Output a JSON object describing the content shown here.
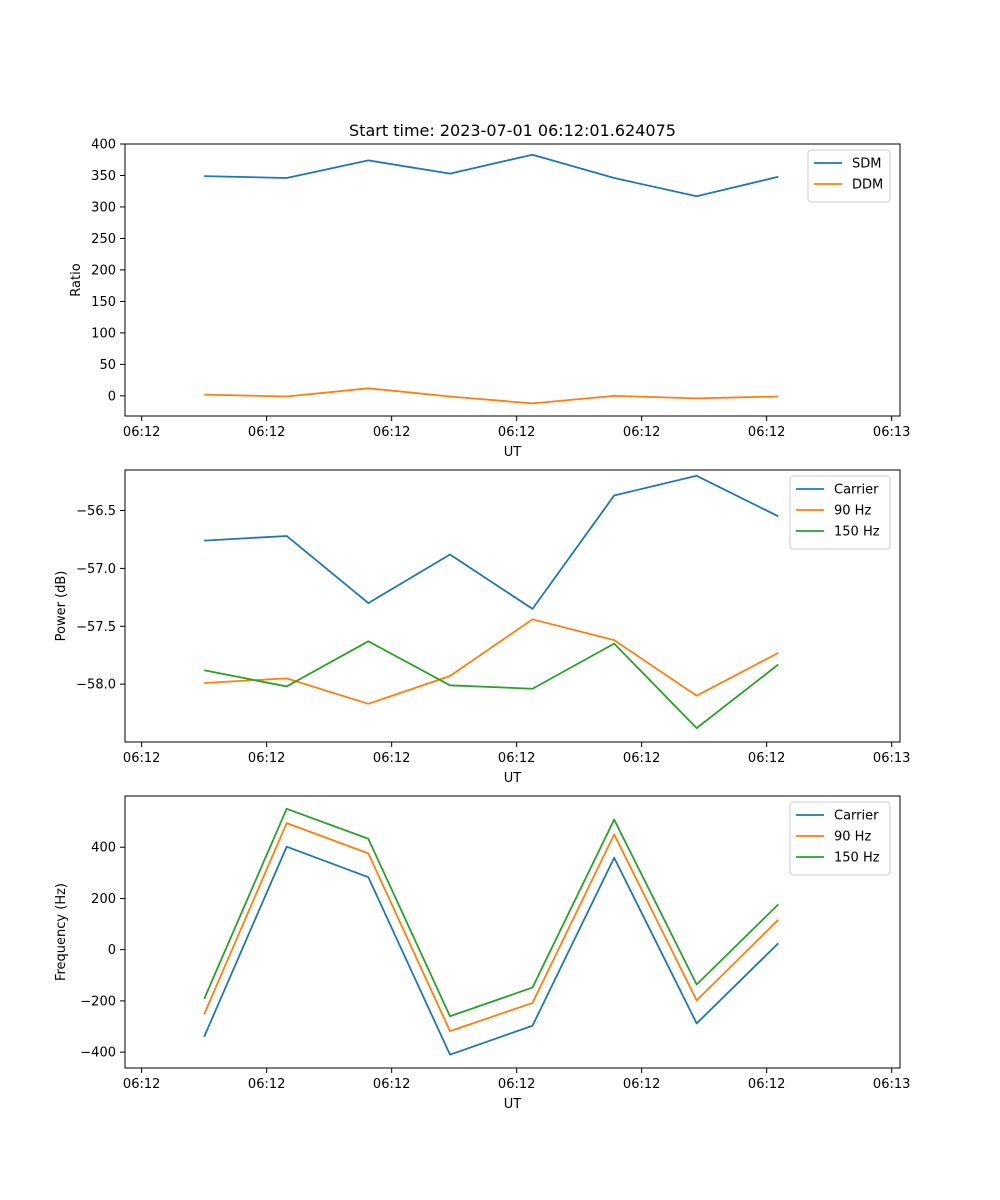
{
  "title": "Start time: 2023-07-01 06:12:01.624075",
  "colors": {
    "blue": "#1f77b4",
    "orange": "#ff7f0e",
    "green": "#2ca02c"
  },
  "chart_data": [
    {
      "type": "line",
      "title": "Start time: 2023-07-01 06:12:01.624075",
      "xlabel": "UT",
      "ylabel": "Ratio",
      "xlim": [
        -0.2,
        9.1
      ],
      "ylim": [
        -32,
        400
      ],
      "x_ticks": [
        0,
        1.5,
        3,
        4.5,
        6,
        7.5,
        9
      ],
      "x_tick_labels": [
        "06:12",
        "06:12",
        "06:12",
        "06:12",
        "06:12",
        "06:12",
        "06:13"
      ],
      "y_ticks": [
        400,
        350,
        300,
        250,
        200,
        150,
        100,
        50,
        0
      ],
      "y_tick_labels": [
        "400",
        "350",
        "300",
        "250",
        "200",
        "150",
        "100",
        "50",
        "0"
      ],
      "legend_position": "top-right",
      "x": [
        0.75,
        1.74,
        2.72,
        3.7,
        4.69,
        5.67,
        6.66,
        7.64
      ],
      "series": [
        {
          "name": "SDM",
          "color": "#1f77b4",
          "values": [
            349,
            346,
            374,
            353,
            383,
            346,
            317,
            348
          ]
        },
        {
          "name": "DDM",
          "color": "#ff7f0e",
          "values": [
            2,
            -1,
            12,
            -1,
            -12,
            0,
            -4,
            -1
          ]
        }
      ]
    },
    {
      "type": "line",
      "xlabel": "UT",
      "ylabel": "Power (dB)",
      "xlim": [
        -0.2,
        9.1
      ],
      "ylim": [
        -58.5,
        -56.15
      ],
      "x_ticks": [
        0,
        1.5,
        3,
        4.5,
        6,
        7.5,
        9
      ],
      "x_tick_labels": [
        "06:12",
        "06:12",
        "06:12",
        "06:12",
        "06:12",
        "06:12",
        "06:13"
      ],
      "y_ticks": [
        -56.5,
        -57.0,
        -57.5,
        -58.0
      ],
      "y_tick_labels": [
        "−56.5",
        "−57.0",
        "−57.5",
        "−58.0"
      ],
      "legend_position": "top-right",
      "x": [
        0.75,
        1.74,
        2.72,
        3.7,
        4.69,
        5.67,
        6.66,
        7.64
      ],
      "series": [
        {
          "name": "Carrier",
          "color": "#1f77b4",
          "values": [
            -56.76,
            -56.72,
            -57.3,
            -56.88,
            -57.35,
            -56.37,
            -56.2,
            -56.55
          ]
        },
        {
          "name": "90 Hz",
          "color": "#ff7f0e",
          "values": [
            -57.99,
            -57.95,
            -58.17,
            -57.93,
            -57.44,
            -57.62,
            -58.1,
            -57.73
          ]
        },
        {
          "name": "150 Hz",
          "color": "#2ca02c",
          "values": [
            -57.88,
            -58.02,
            -57.63,
            -58.01,
            -58.04,
            -57.65,
            -58.38,
            -57.83
          ]
        }
      ]
    },
    {
      "type": "line",
      "xlabel": "UT",
      "ylabel": "Frequency (Hz)",
      "xlim": [
        -0.2,
        9.1
      ],
      "ylim": [
        -462,
        600
      ],
      "x_ticks": [
        0,
        1.5,
        3,
        4.5,
        6,
        7.5,
        9
      ],
      "x_tick_labels": [
        "06:12",
        "06:12",
        "06:12",
        "06:12",
        "06:12",
        "06:12",
        "06:13"
      ],
      "y_ticks": [
        400,
        200,
        0,
        -200,
        -400
      ],
      "y_tick_labels": [
        "400",
        "200",
        "0",
        "−200",
        "−400"
      ],
      "legend_position": "top-right",
      "x": [
        0.75,
        1.74,
        2.72,
        3.7,
        4.69,
        5.67,
        6.66,
        7.64
      ],
      "series": [
        {
          "name": "Carrier",
          "color": "#1f77b4",
          "values": [
            -340,
            402,
            283,
            -410,
            -297,
            359,
            -288,
            25
          ]
        },
        {
          "name": "90 Hz",
          "color": "#ff7f0e",
          "values": [
            -252,
            494,
            376,
            -318,
            -208,
            450,
            -198,
            117
          ]
        },
        {
          "name": "150 Hz",
          "color": "#2ca02c",
          "values": [
            -192,
            550,
            433,
            -260,
            -148,
            508,
            -136,
            177
          ]
        }
      ]
    }
  ]
}
